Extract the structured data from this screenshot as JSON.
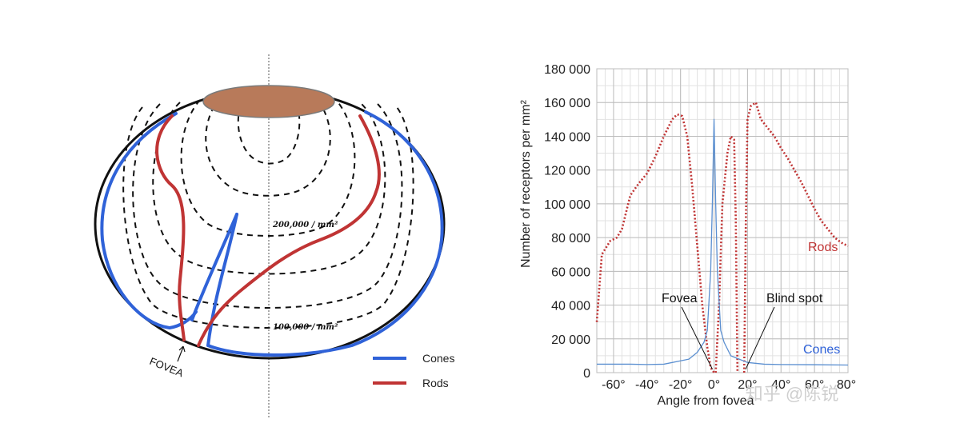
{
  "left_diagram": {
    "fovea_label": "FOVEA",
    "density_label_200k": "200,000 / mm²",
    "density_label_100k": "100,000 / mm²",
    "legend": [
      {
        "label": "Cones",
        "color": "#2f62d8"
      },
      {
        "label": "Rods",
        "color": "#c03434"
      }
    ],
    "colors": {
      "cap": "#b87a5a",
      "cones": "#2f62d8",
      "rods": "#c03434"
    }
  },
  "chart_data": {
    "type": "line",
    "xlabel": "Angle from fovea",
    "ylabel": "Number of receptors per mm²",
    "xlim": [
      -70,
      80
    ],
    "ylim": [
      0,
      180000
    ],
    "x_ticks": [
      {
        "v": -60,
        "label": "-60°"
      },
      {
        "v": -40,
        "label": "-40°"
      },
      {
        "v": -20,
        "label": "-20°"
      },
      {
        "v": 0,
        "label": "0°"
      },
      {
        "v": 20,
        "label": "20°"
      },
      {
        "v": 40,
        "label": "40°"
      },
      {
        "v": 60,
        "label": "60°"
      },
      {
        "v": 80,
        "label": "80°"
      }
    ],
    "y_ticks": [
      {
        "v": 0,
        "label": "0"
      },
      {
        "v": 20000,
        "label": "20 000"
      },
      {
        "v": 40000,
        "label": "40 000"
      },
      {
        "v": 60000,
        "label": "60 000"
      },
      {
        "v": 80000,
        "label": "80 000"
      },
      {
        "v": 100000,
        "label": "100 000"
      },
      {
        "v": 120000,
        "label": "120 000"
      },
      {
        "v": 140000,
        "label": "140 000"
      },
      {
        "v": 160000,
        "label": "160 000"
      },
      {
        "v": 180000,
        "label": "180 000"
      }
    ],
    "grid": true,
    "series": [
      {
        "name": "Rods",
        "color": "#c03434",
        "style": "dotted",
        "x": [
          -70,
          -67,
          -62,
          -58,
          -55,
          -50,
          -45,
          -40,
          -35,
          -30,
          -25,
          -22,
          -19,
          -16,
          -13,
          -10,
          -7,
          -4,
          -2,
          0
        ],
        "y": [
          30000,
          70000,
          78000,
          80000,
          85000,
          105000,
          112000,
          118000,
          128000,
          140000,
          150000,
          153000,
          152000,
          140000,
          110000,
          75000,
          40000,
          15000,
          3000,
          0
        ]
      },
      {
        "name": "Rods",
        "color": "#c03434",
        "style": "dotted",
        "x": [
          1,
          3,
          5,
          8,
          10,
          12,
          13,
          14
        ],
        "y": [
          0,
          40000,
          100000,
          130000,
          140000,
          138000,
          90000,
          0
        ]
      },
      {
        "name": "Rods",
        "color": "#c03434",
        "style": "dotted",
        "x": [
          18,
          19,
          20,
          22,
          25,
          28,
          32,
          36,
          40,
          44,
          48,
          52,
          56,
          60,
          64,
          68,
          72,
          76,
          80
        ],
        "y": [
          0,
          90000,
          150000,
          158000,
          160000,
          150000,
          145000,
          140000,
          133000,
          127000,
          120000,
          113000,
          105000,
          97000,
          90000,
          85000,
          80000,
          77000,
          75000
        ]
      },
      {
        "name": "Cones",
        "color": "#5b8fd0",
        "style": "solid",
        "x": [
          -70,
          -50,
          -40,
          -30,
          -20,
          -15,
          -10,
          -6,
          -4,
          -2,
          -1,
          0,
          1,
          2,
          4,
          6,
          10,
          15,
          20,
          30,
          40,
          60,
          80
        ],
        "y": [
          5000,
          5000,
          4800,
          5000,
          7000,
          8000,
          12000,
          18000,
          25000,
          60000,
          100000,
          150000,
          100000,
          60000,
          25000,
          18000,
          10000,
          8000,
          6000,
          5000,
          4800,
          4700,
          4500
        ]
      }
    ],
    "series_labels": [
      {
        "text": "Rods",
        "color": "#c03434"
      },
      {
        "text": "Cones",
        "color": "#2f62d8"
      }
    ],
    "annotations": [
      {
        "text": "Fovea",
        "point_x": 0,
        "point_y": 2000
      },
      {
        "text": "Blind spot",
        "point_x": 16,
        "point_y": 2000
      }
    ]
  },
  "watermark": "知乎 @陈锐"
}
